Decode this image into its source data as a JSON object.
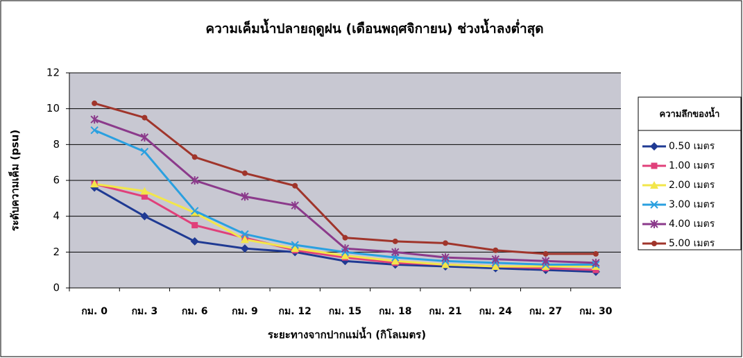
{
  "chart_data": {
    "type": "line",
    "title": "ความเค็มน้ำปลายฤดูฝน (เดือนพฤศจิกายน) ช่วงน้ำลงต่ำสุด",
    "x_label": "ระยะทางจากปากแม่น้ำ (กิโลเมตร)",
    "y_label": "ระดับความเค็ม (psu)",
    "legend_title": "ความลึกของน้ำ",
    "legend": "right",
    "grid": true,
    "categories": [
      "กม. 0",
      "กม. 3",
      "กม. 6",
      "กม. 9",
      "กม. 12",
      "กม. 15",
      "กม. 18",
      "กม. 21",
      "กม. 24",
      "กม. 27",
      "กม. 30"
    ],
    "ylim": [
      0,
      12
    ],
    "yticks": [
      0,
      2,
      4,
      6,
      8,
      10,
      12
    ],
    "series": [
      {
        "name": "0.50 เมตร",
        "color": "#1f3a93",
        "marker": "diamond",
        "values": [
          5.6,
          4.0,
          2.6,
          2.2,
          2.0,
          1.5,
          1.3,
          1.2,
          1.1,
          1.0,
          0.9
        ]
      },
      {
        "name": "1.00 เมตร",
        "color": "#e0407a",
        "marker": "square",
        "values": [
          5.8,
          5.1,
          3.5,
          2.8,
          2.1,
          1.7,
          1.4,
          1.3,
          1.2,
          1.1,
          1.0
        ]
      },
      {
        "name": "2.00 เมตร",
        "color": "#f2e64a",
        "marker": "triangle",
        "values": [
          5.8,
          5.4,
          4.2,
          2.7,
          2.2,
          1.8,
          1.5,
          1.3,
          1.2,
          1.2,
          1.2
        ]
      },
      {
        "name": "3.00 เมตร",
        "color": "#2aa0e0",
        "marker": "x",
        "values": [
          8.8,
          7.6,
          4.3,
          3.0,
          2.4,
          2.0,
          1.7,
          1.5,
          1.4,
          1.3,
          1.3
        ]
      },
      {
        "name": "4.00 เมตร",
        "color": "#8b3a8b",
        "marker": "star",
        "values": [
          9.4,
          8.4,
          6.0,
          5.1,
          4.6,
          2.2,
          2.0,
          1.7,
          1.6,
          1.5,
          1.4
        ]
      },
      {
        "name": "5.00 เมตร",
        "color": "#a0352b",
        "marker": "circle",
        "values": [
          10.3,
          9.5,
          7.3,
          6.4,
          5.7,
          2.8,
          2.6,
          2.5,
          2.1,
          1.9,
          1.9
        ]
      }
    ]
  }
}
